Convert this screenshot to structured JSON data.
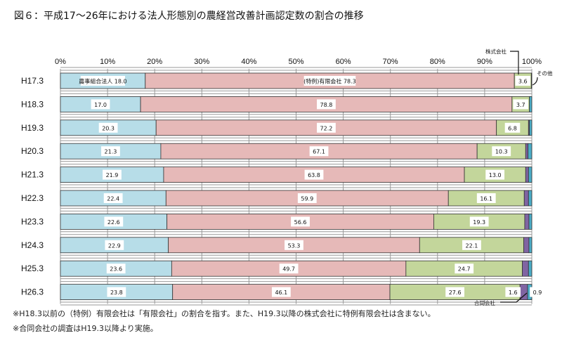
{
  "chart_data": {
    "type": "bar",
    "orientation": "horizontal",
    "stacked": true,
    "title": "図６：平成17～26年における法人形態別の農経営改善計画認定数の割合の推移",
    "categories": [
      "H17.3",
      "H18.3",
      "H19.3",
      "H20.3",
      "H21.3",
      "H22.3",
      "H23.3",
      "H24.3",
      "H25.3",
      "H26.3"
    ],
    "xlim": [
      0,
      100
    ],
    "xticks": [
      "0%",
      "10%",
      "20%",
      "30%",
      "40%",
      "50%",
      "60%",
      "70%",
      "80%",
      "90%",
      "100%"
    ],
    "grid": true,
    "series": [
      {
        "name": "農事組合法人",
        "color": "#b7dde8",
        "values": [
          18.0,
          17.0,
          20.3,
          21.3,
          21.9,
          22.4,
          22.6,
          22.9,
          23.6,
          23.8
        ],
        "labeled": [
          true,
          true,
          true,
          true,
          true,
          true,
          true,
          true,
          true,
          true
        ]
      },
      {
        "name": "(特例)有限会社",
        "color": "#e6b9b8",
        "values": [
          78.3,
          78.8,
          72.2,
          67.1,
          63.8,
          59.9,
          56.6,
          53.3,
          49.7,
          46.1
        ],
        "labeled": [
          true,
          true,
          true,
          true,
          true,
          true,
          true,
          true,
          true,
          true
        ]
      },
      {
        "name": "株式会社",
        "color": "#c3d69b",
        "values": [
          3.6,
          3.7,
          6.8,
          10.3,
          13.0,
          16.1,
          19.3,
          22.1,
          24.7,
          27.6
        ],
        "labeled": [
          true,
          true,
          true,
          true,
          true,
          true,
          true,
          true,
          true,
          true
        ]
      },
      {
        "name": "合同会社",
        "color": "#8064a2",
        "values": [
          0,
          0,
          0.2,
          0.5,
          0.6,
          0.9,
          0.9,
          1.1,
          1.3,
          1.6
        ],
        "labeled": [
          false,
          false,
          false,
          false,
          false,
          false,
          false,
          false,
          false,
          true
        ]
      },
      {
        "name": "その他",
        "color": "#4bacc6",
        "values": [
          0.1,
          0.5,
          0.5,
          0.8,
          0.7,
          0.7,
          0.6,
          0.6,
          0.7,
          0.9
        ],
        "labeled": [
          false,
          false,
          false,
          false,
          false,
          false,
          false,
          false,
          false,
          true
        ]
      }
    ],
    "first_row_series_names": [
      "農事組合法人",
      "(特例)有限会社"
    ],
    "callouts": {
      "kabushiki": "株式会社",
      "sonota": "その他",
      "godo": "合同会社"
    }
  },
  "notes": [
    "※H18.3以前の（特例）有限会社は「有限会社」の割合を指す。また、H19.3以降の株式会社に特例有限会社は含まない。",
    "※合同会社の調査はH19.3以降より実施。"
  ]
}
